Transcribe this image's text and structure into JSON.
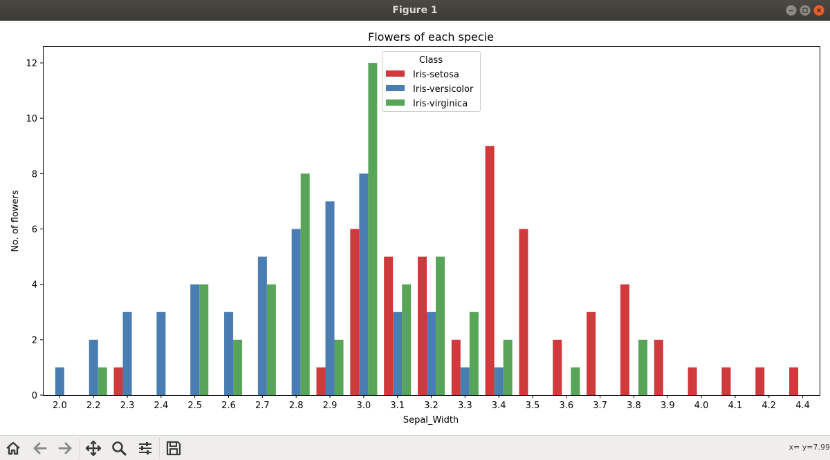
{
  "window": {
    "title": "Figure 1"
  },
  "toolbar": {
    "buttons": [
      "home-icon",
      "back-arrow-icon",
      "forward-arrow-icon",
      "pan-icon",
      "zoom-icon",
      "configure-subplots-icon",
      "save-icon"
    ],
    "coords_text": "x= y=7.99"
  },
  "colors": {
    "setosa": "#d03a3c",
    "versicolor": "#4a7eb3",
    "virginica": "#58a55a"
  },
  "chart_data": {
    "type": "bar",
    "title": "Flowers of each specie",
    "xlabel": "Sepal_Width",
    "ylabel": "No. of flowers",
    "categories": [
      "2.0",
      "2.2",
      "2.3",
      "2.4",
      "2.5",
      "2.6",
      "2.7",
      "2.8",
      "2.9",
      "3.0",
      "3.1",
      "3.2",
      "3.3",
      "3.4",
      "3.5",
      "3.6",
      "3.7",
      "3.8",
      "3.9",
      "4.0",
      "4.1",
      "4.2",
      "4.4"
    ],
    "series": [
      {
        "name": "Iris-setosa",
        "values": [
          0,
          0,
          1,
          0,
          0,
          0,
          0,
          0,
          1,
          6,
          5,
          5,
          2,
          9,
          6,
          2,
          3,
          4,
          2,
          1,
          1,
          1,
          1
        ]
      },
      {
        "name": "Iris-versicolor",
        "values": [
          1,
          2,
          3,
          3,
          4,
          3,
          5,
          6,
          7,
          8,
          3,
          3,
          1,
          1,
          0,
          0,
          0,
          0,
          0,
          0,
          0,
          0,
          0
        ]
      },
      {
        "name": "Iris-virginica",
        "values": [
          0,
          1,
          0,
          0,
          4,
          2,
          4,
          8,
          2,
          12,
          4,
          5,
          3,
          2,
          0,
          1,
          0,
          2,
          0,
          0,
          0,
          0,
          0
        ]
      }
    ],
    "ylim": [
      0,
      12.6
    ],
    "yticks": [
      0,
      2,
      4,
      6,
      8,
      10,
      12
    ],
    "legend": {
      "title": "Class",
      "position": "upper center"
    },
    "grid": false
  }
}
